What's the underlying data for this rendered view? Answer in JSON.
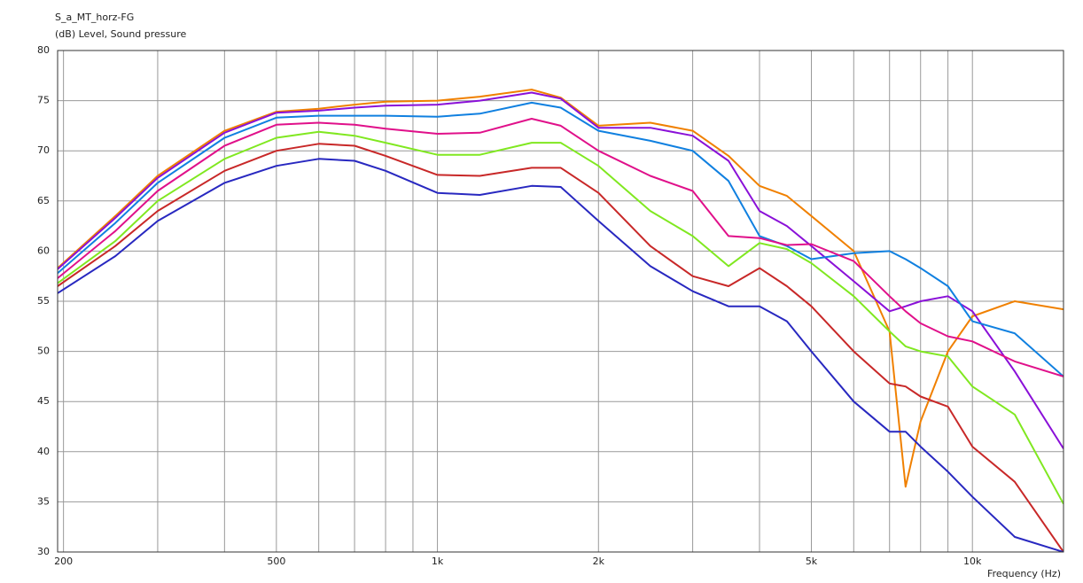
{
  "chart_data": {
    "type": "line",
    "title": "S_a_MT_horz-FG",
    "y_label": "(dB)  Level, Sound pressure",
    "x_label": "Frequency  (Hz)",
    "log_x": true,
    "grid": true,
    "xlim": [
      195,
      14800
    ],
    "ylim": [
      30,
      80
    ],
    "xticks": [
      200,
      500,
      {
        "value": 1000,
        "label": "1k"
      },
      {
        "value": 2000,
        "label": "2k"
      },
      {
        "value": 5000,
        "label": "5k"
      },
      {
        "value": 10000,
        "label": "10k"
      }
    ],
    "x_minor_grid": [
      300,
      400,
      600,
      700,
      800,
      900,
      3000,
      4000,
      6000,
      7000,
      8000,
      9000
    ],
    "yticks": [
      30,
      35,
      40,
      45,
      50,
      55,
      60,
      65,
      70,
      75,
      80
    ],
    "x": [
      195,
      250,
      300,
      400,
      500,
      600,
      700,
      800,
      1000,
      1200,
      1500,
      1700,
      2000,
      2500,
      3000,
      3500,
      4000,
      4500,
      5000,
      6000,
      7000,
      7500,
      8000,
      9000,
      10000,
      12000,
      14800
    ],
    "series": [
      {
        "color": "#f08000",
        "values": [
          58.3,
          63.5,
          67.5,
          72,
          73.9,
          74.2,
          74.6,
          74.9,
          75,
          75.4,
          76.1,
          75.3,
          72.5,
          72.8,
          72,
          69.5,
          66.5,
          65.5,
          63.5,
          60,
          52,
          36.5,
          43,
          50,
          53.5,
          55,
          54.2
        ]
      },
      {
        "color": "#8a10d8",
        "values": [
          58.2,
          63.3,
          67.3,
          71.8,
          73.8,
          74,
          74.3,
          74.5,
          74.6,
          75,
          75.8,
          75.2,
          72.3,
          72.3,
          71.5,
          69,
          64,
          62.5,
          60.5,
          57,
          54,
          54.5,
          55,
          55.5,
          54,
          48,
          40.3
        ]
      },
      {
        "color": "#1080e0",
        "values": [
          57.8,
          62.8,
          66.8,
          71.3,
          73.3,
          73.5,
          73.5,
          73.5,
          73.4,
          73.7,
          74.8,
          74.3,
          72,
          71,
          70,
          67,
          61.5,
          60.5,
          59.2,
          59.8,
          60,
          59.2,
          58.3,
          56.5,
          53,
          51.8,
          47.5
        ]
      },
      {
        "color": "#e0108a",
        "values": [
          57.3,
          62,
          66,
          70.5,
          72.6,
          72.8,
          72.6,
          72.2,
          71.7,
          71.8,
          73.2,
          72.5,
          70,
          67.5,
          66,
          61.5,
          61.3,
          60.6,
          60.7,
          59,
          55.5,
          54,
          52.8,
          51.5,
          51,
          49,
          47.5
        ]
      },
      {
        "color": "#80e820",
        "values": [
          56.8,
          61,
          65,
          69.2,
          71.3,
          71.9,
          71.5,
          70.8,
          69.6,
          69.6,
          70.8,
          70.8,
          68.5,
          64,
          61.5,
          58.5,
          60.8,
          60.2,
          58.8,
          55.5,
          52,
          50.5,
          50,
          49.5,
          46.5,
          43.7,
          34.8
        ]
      },
      {
        "color": "#c82828",
        "values": [
          56.5,
          60.5,
          64,
          68,
          70,
          70.7,
          70.5,
          69.5,
          67.6,
          67.5,
          68.3,
          68.3,
          65.8,
          60.5,
          57.5,
          56.5,
          58.3,
          56.5,
          54.5,
          50,
          46.8,
          46.5,
          45.5,
          44.5,
          40.5,
          37,
          30
        ]
      },
      {
        "color": "#2828c0",
        "values": [
          55.8,
          59.5,
          63,
          66.8,
          68.5,
          69.2,
          69,
          68,
          65.8,
          65.6,
          66.5,
          66.4,
          63,
          58.5,
          56,
          54.5,
          54.5,
          53,
          50,
          45,
          42,
          42,
          40.5,
          38,
          35.5,
          31.5,
          30
        ]
      }
    ]
  }
}
